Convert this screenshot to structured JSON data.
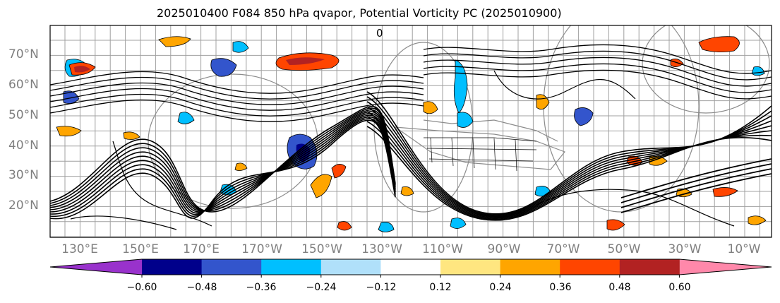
{
  "title": "2025010400 F084 850 hPa qvapor, Potential Vorticity PC (2025010900)",
  "map": {
    "latitude_labels": [
      "70°N",
      "60°N",
      "50°N",
      "40°N",
      "30°N",
      "20°N"
    ],
    "longitude_labels": [
      "130°E",
      "150°E",
      "170°E",
      "170°W",
      "150°W",
      "130°W",
      "110°W",
      "90°W",
      "70°W",
      "50°W",
      "30°W",
      "10°W"
    ],
    "contour_label": "0",
    "fill_colors": {
      "strong_negative": "#00008b",
      "moderate_negative": "#3355cc",
      "weak_negative": "#00bfff",
      "weakest_negative": "#b0e0fa",
      "weakest_positive": "#ffe680",
      "weak_positive": "#ffa500",
      "moderate_positive": "#ff4500",
      "strong_positive": "#b22222",
      "contour": "#000000",
      "coast": "#808080"
    }
  },
  "colorbar": {
    "colors": [
      "#9932cc",
      "#00008b",
      "#3355cc",
      "#00bfff",
      "#b0e0fa",
      "#ffffff",
      "#ffe680",
      "#ffa500",
      "#ff4500",
      "#b22222",
      "#ff88aa"
    ],
    "tick_labels": [
      "−0.60",
      "−0.48",
      "−0.36",
      "−0.24",
      "−0.12",
      "0.12",
      "0.24",
      "0.36",
      "0.48",
      "0.60"
    ]
  }
}
